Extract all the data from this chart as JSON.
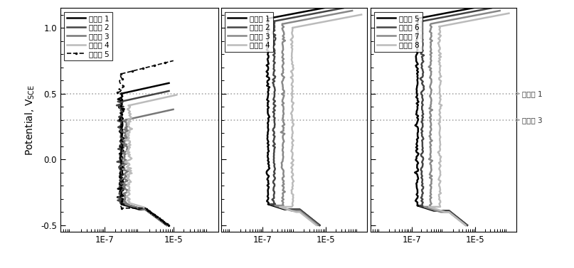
{
  "ylabel": "Potential, V",
  "ylabel_sub": "SCE",
  "ylim": [
    -0.55,
    1.15
  ],
  "yticks": [
    -0.5,
    0.0,
    0.5,
    1.0
  ],
  "xlim": [
    5e-09,
    0.0002
  ],
  "xtick_labels": [
    "1E-7",
    "1E-5"
  ],
  "xtick_vals": [
    1e-07,
    1e-05
  ],
  "hline1_y": 0.5,
  "hline2_y": 0.3,
  "hline1_label": "비교예 1",
  "hline2_label": "비교예 3",
  "panel1_legend": [
    "비교예 1",
    "비교예 2",
    "비교예 3",
    "비교예 4",
    "비교예 5"
  ],
  "panel2_legend": [
    "실시예 1",
    "실시예 2",
    "실시예 3",
    "실시예 4"
  ],
  "panel3_legend": [
    "실시예 5",
    "실시예 6",
    "실시예 7",
    "실시예 8"
  ],
  "panel1_colors": [
    "#000000",
    "#444444",
    "#777777",
    "#bbbbbb",
    "#000000"
  ],
  "panel2_colors": [
    "#000000",
    "#444444",
    "#888888",
    "#bbbbbb"
  ],
  "panel3_colors": [
    "#000000",
    "#444444",
    "#888888",
    "#bbbbbb"
  ],
  "bg_color": "#ffffff"
}
